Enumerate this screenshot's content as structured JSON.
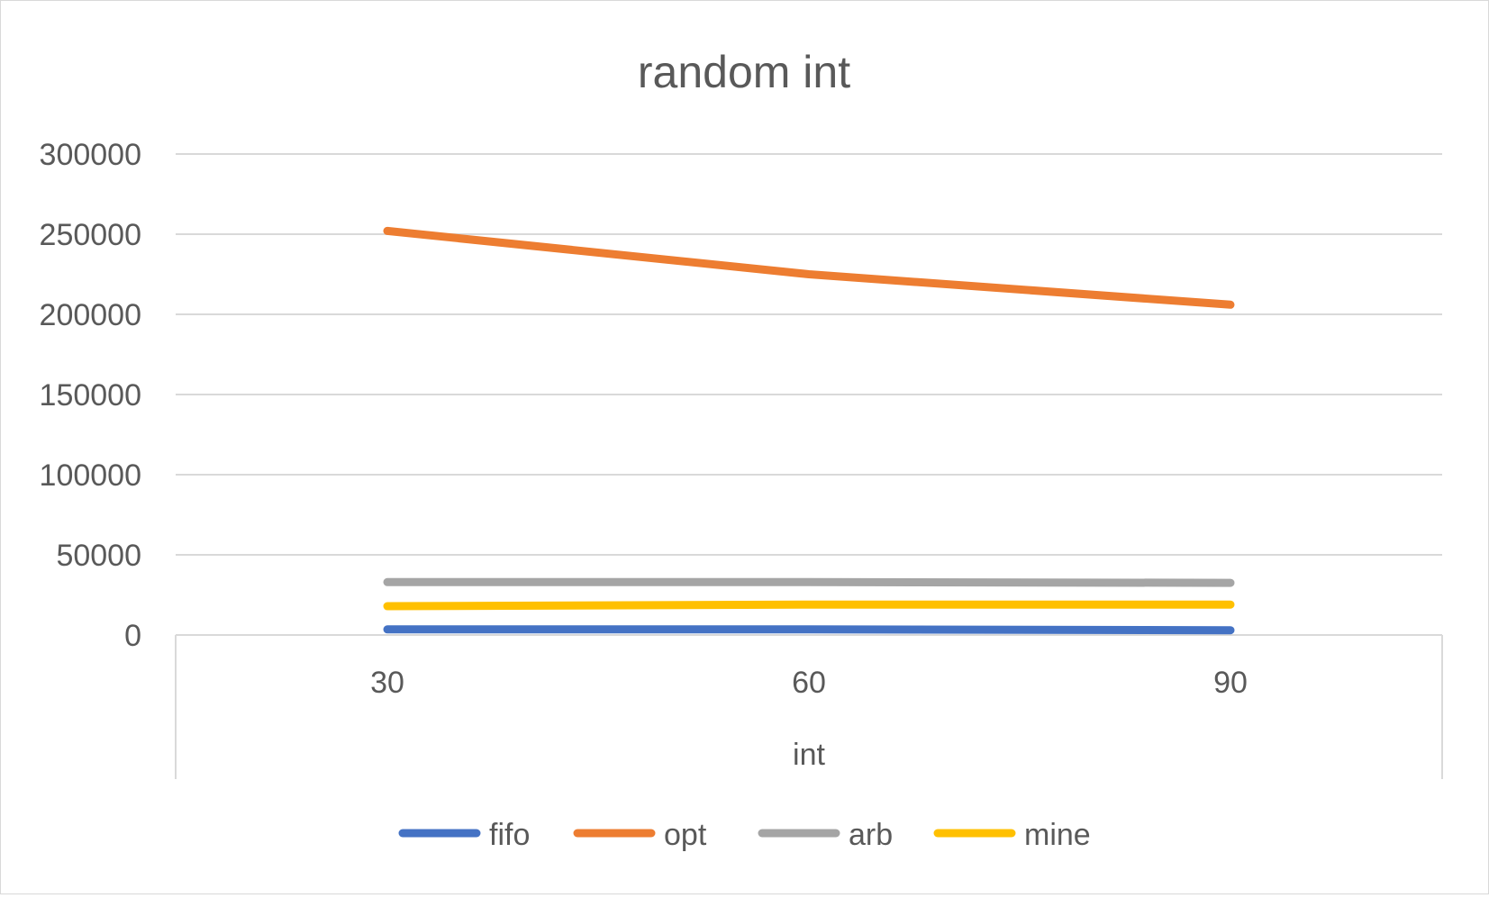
{
  "chart_data": {
    "type": "line",
    "title": "random int",
    "xlabel": "int",
    "ylabel": "",
    "x": [
      "30",
      "60",
      "90"
    ],
    "ylim": [
      0,
      300000
    ],
    "yticks": [
      "0",
      "50000",
      "100000",
      "150000",
      "200000",
      "250000",
      "300000"
    ],
    "grid": true,
    "legend_position": "bottom",
    "series": [
      {
        "name": "fifo",
        "color": "#4472C4",
        "values": [
          3500,
          3500,
          3000
        ]
      },
      {
        "name": "opt",
        "color": "#ED7D31",
        "values": [
          252000,
          225000,
          206000
        ]
      },
      {
        "name": "arb",
        "color": "#A5A5A5",
        "values": [
          33000,
          33000,
          32500
        ]
      },
      {
        "name": "mine",
        "color": "#FFC000",
        "values": [
          18000,
          19000,
          19000
        ]
      }
    ]
  }
}
